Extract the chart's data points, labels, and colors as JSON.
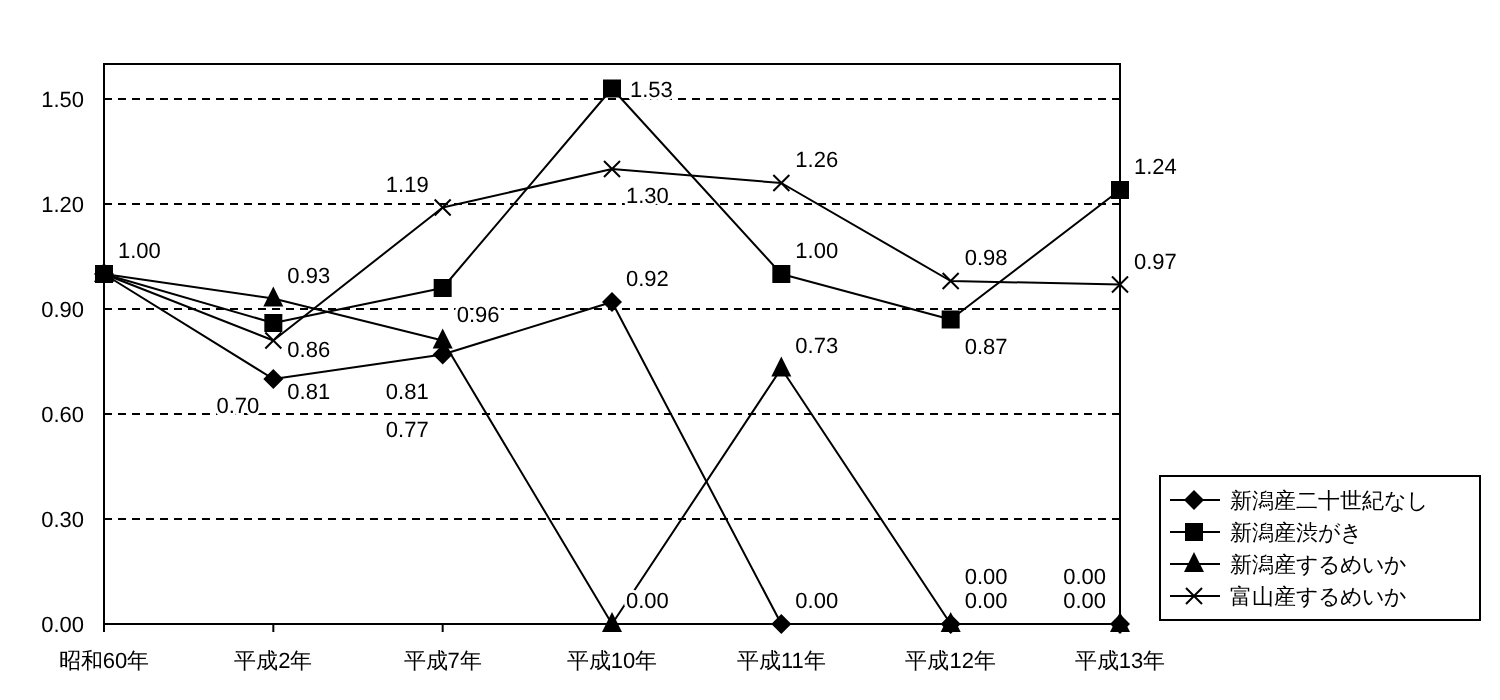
{
  "chart_data": {
    "type": "line",
    "categories": [
      "昭和60年",
      "平成2年",
      "平成7年",
      "平成10年",
      "平成11年",
      "平成12年",
      "平成13年"
    ],
    "series": [
      {
        "name": "新潟産二十世紀なし",
        "color": "#000000",
        "marker": "diamond",
        "values": [
          1.0,
          0.7,
          0.77,
          0.92,
          0.0,
          0.0,
          0.0
        ],
        "value_labels": [
          "1.00",
          "0.70",
          "0.77",
          "0.92",
          "0.00",
          "0.00",
          "0.00"
        ]
      },
      {
        "name": "新潟産渋がき",
        "color": "#000000",
        "marker": "square",
        "values": [
          1.0,
          0.86,
          0.96,
          1.53,
          1.0,
          0.87,
          1.24
        ],
        "value_labels": [
          null,
          "0.86",
          "0.96",
          "1.53",
          "1.00",
          "0.87",
          "1.24"
        ]
      },
      {
        "name": "新潟産するめいか",
        "color": "#000000",
        "marker": "triangle",
        "values": [
          1.0,
          0.93,
          0.81,
          0.0,
          0.73,
          0.0,
          0.0
        ],
        "value_labels": [
          null,
          "0.93",
          "0.81",
          "0.00",
          "0.73",
          "0.00",
          "0.00"
        ]
      },
      {
        "name": "富山産するめいか",
        "color": "#000000",
        "marker": "cross",
        "values": [
          1.0,
          0.81,
          1.19,
          1.3,
          1.26,
          0.98,
          0.97
        ],
        "value_labels": [
          null,
          "0.81",
          "1.19",
          "1.30",
          "1.26",
          "0.98",
          "0.97"
        ]
      }
    ],
    "ylim": [
      0,
      1.6
    ],
    "yticks": [
      {
        "value": 0,
        "label": "0.00"
      },
      {
        "value": 0.3,
        "label": "0.30"
      },
      {
        "value": 0.6,
        "label": "0.60"
      },
      {
        "value": 0.9,
        "label": "0.90"
      },
      {
        "value": 1.2,
        "label": "1.20"
      },
      {
        "value": 1.5,
        "label": "1.50"
      }
    ],
    "grid": "y",
    "legend": "bottom right",
    "line_style": "solid"
  }
}
